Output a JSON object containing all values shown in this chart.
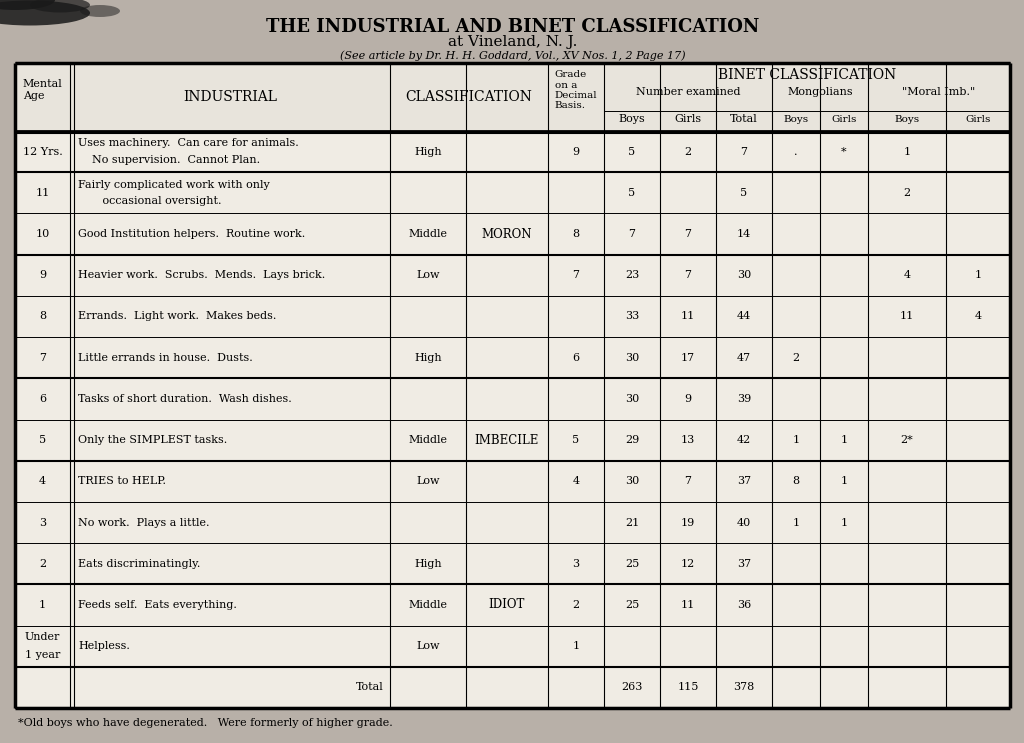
{
  "title1": "THE INDUSTRIAL AND BINET CLASSIFICATION",
  "title2": "at Vineland, N. J.",
  "title3": "(See article by Dr. H. H. Goddard, Vol., XV Nos. 1, 2 Page 17)",
  "bg_color": "#b8b0a8",
  "table_bg": "#f0ece4",
  "header_bg": "#e8e4dc",
  "rows": [
    {
      "mental_age": "12 Yrs.",
      "industrial": "Uses machinery.  Can care for animals.\n    No supervision.  Cannot Plan.",
      "class1": "High",
      "grade": "9",
      "boys": "5",
      "girls": "2",
      "total": "7",
      "mong_boys": ".",
      "mong_girls": "*",
      "moral_boys": "1",
      "moral_girls": ""
    },
    {
      "mental_age": "11",
      "industrial": "Fairly complicated work with only\n       occasional oversight.",
      "class1": "",
      "grade": "",
      "boys": "5",
      "girls": "",
      "total": "5",
      "mong_boys": "",
      "mong_girls": "",
      "moral_boys": "2",
      "moral_girls": ""
    },
    {
      "mental_age": "10",
      "industrial": "Good Institution helpers.  Routine work.",
      "class1": "Middle",
      "grade": "8",
      "boys": "7",
      "girls": "7",
      "total": "14",
      "mong_boys": "",
      "mong_girls": "",
      "moral_boys": "",
      "moral_girls": ""
    },
    {
      "mental_age": "9",
      "industrial": "Heavier work.  Scrubs.  Mends.  Lays brick.",
      "class1": "Low",
      "grade": "7",
      "boys": "23",
      "girls": "7",
      "total": "30",
      "mong_boys": "",
      "mong_girls": "",
      "moral_boys": "4",
      "moral_girls": "1"
    },
    {
      "mental_age": "8",
      "industrial": "Errands.  Light work.  Makes beds.",
      "class1": "",
      "grade": "",
      "boys": "33",
      "girls": "11",
      "total": "44",
      "mong_boys": "",
      "mong_girls": "",
      "moral_boys": "11",
      "moral_girls": "4"
    },
    {
      "mental_age": "7",
      "industrial": "Little errands in house.  Dusts.",
      "class1": "High",
      "grade": "6",
      "boys": "30",
      "girls": "17",
      "total": "47",
      "mong_boys": "2",
      "mong_girls": "",
      "moral_boys": "",
      "moral_girls": ""
    },
    {
      "mental_age": "6",
      "industrial": "Tasks of short duration.  Wash dishes.",
      "class1": "",
      "grade": "",
      "boys": "30",
      "girls": "9",
      "total": "39",
      "mong_boys": "",
      "mong_girls": "",
      "moral_boys": "",
      "moral_girls": ""
    },
    {
      "mental_age": "5",
      "industrial": "Only the SIMPLEST tasks.",
      "class1": "Middle",
      "grade": "5",
      "boys": "29",
      "girls": "13",
      "total": "42",
      "mong_boys": "1",
      "mong_girls": "1",
      "moral_boys": "2*",
      "moral_girls": ""
    },
    {
      "mental_age": "4",
      "industrial": "TRIES to HELP.",
      "class1": "Low",
      "grade": "4",
      "boys": "30",
      "girls": "7",
      "total": "37",
      "mong_boys": "8",
      "mong_girls": "1",
      "moral_boys": "",
      "moral_girls": ""
    },
    {
      "mental_age": "3",
      "industrial": "No work.  Plays a little.",
      "class1": "",
      "grade": "",
      "boys": "21",
      "girls": "19",
      "total": "40",
      "mong_boys": "1",
      "mong_girls": "1",
      "moral_boys": "",
      "moral_girls": ""
    },
    {
      "mental_age": "2",
      "industrial": "Eats discriminatingly.",
      "class1": "High",
      "grade": "3",
      "boys": "25",
      "girls": "12",
      "total": "37",
      "mong_boys": "",
      "mong_girls": "",
      "moral_boys": "",
      "moral_girls": ""
    },
    {
      "mental_age": "1",
      "industrial": "Feeds self.  Eats everything.",
      "class1": "Middle",
      "grade": "2",
      "boys": "25",
      "girls": "11",
      "total": "36",
      "mong_boys": "",
      "mong_girls": "",
      "moral_boys": "",
      "moral_girls": ""
    },
    {
      "mental_age": "Under\n1 year",
      "industrial": "Helpless.",
      "class1": "Low",
      "grade": "1",
      "boys": "",
      "girls": "",
      "total": "",
      "mong_boys": "",
      "mong_girls": "",
      "moral_boys": "",
      "moral_girls": ""
    },
    {
      "mental_age": "",
      "industrial": "Total",
      "class1": "",
      "grade": "",
      "boys": "263",
      "girls": "115",
      "total": "378",
      "mong_boys": "",
      "mong_girls": "",
      "moral_boys": "",
      "moral_girls": ""
    }
  ],
  "class2_labels": [
    {
      "label": "MORON",
      "row": 2
    },
    {
      "label": "IMBECILE",
      "row": 7
    },
    {
      "label": "IDIOT",
      "row": 11
    }
  ],
  "footnote": "*Old boys who have degenerated.   Were formerly of higher grade."
}
